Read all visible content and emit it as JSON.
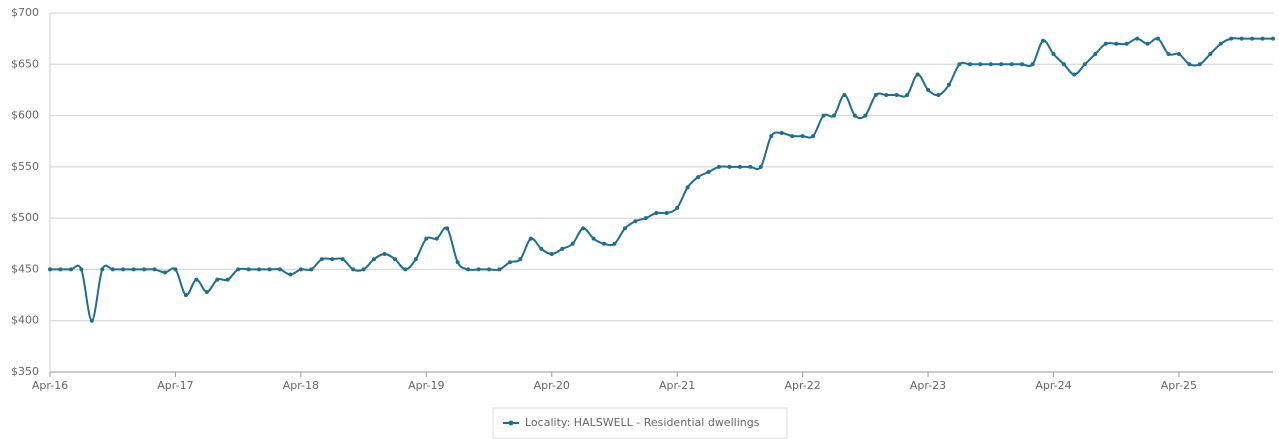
{
  "chart_data": {
    "type": "line",
    "categories": [
      "Apr-16",
      null,
      null,
      null,
      null,
      null,
      null,
      null,
      null,
      null,
      null,
      null,
      "Apr-17",
      null,
      null,
      null,
      null,
      null,
      null,
      null,
      null,
      null,
      null,
      null,
      "Apr-18",
      null,
      null,
      null,
      null,
      null,
      null,
      null,
      null,
      null,
      null,
      null,
      "Apr-19",
      null,
      null,
      null,
      null,
      null,
      null,
      null,
      null,
      null,
      null,
      null,
      "Apr-20",
      null,
      null,
      null,
      null,
      null,
      null,
      null,
      null,
      null,
      null,
      null,
      "Apr-21",
      null,
      null,
      null,
      null,
      null,
      null,
      null,
      null,
      null,
      null,
      null,
      "Apr-22",
      null,
      null,
      null,
      null,
      null,
      null,
      null,
      null,
      null,
      null,
      null,
      "Apr-23",
      null,
      null,
      null,
      null,
      null,
      null,
      null,
      null,
      null,
      null,
      null,
      "Apr-24",
      null,
      null,
      null,
      null,
      null,
      null,
      null,
      null,
      null,
      null,
      null,
      "Apr-25",
      null,
      null,
      null,
      null,
      null,
      null,
      null,
      null,
      null
    ],
    "series": [
      {
        "name": "Locality: HALSWELL - Residential dwellings",
        "color": "#1c6e93",
        "values": [
          450,
          450,
          450,
          450,
          400,
          450,
          450,
          450,
          450,
          450,
          450,
          447,
          450,
          425,
          440,
          428,
          440,
          440,
          450,
          450,
          450,
          450,
          450,
          445,
          450,
          450,
          460,
          460,
          460,
          450,
          450,
          460,
          465,
          460,
          450,
          460,
          480,
          480,
          490,
          457,
          450,
          450,
          450,
          450,
          457,
          460,
          480,
          470,
          465,
          470,
          475,
          490,
          480,
          475,
          475,
          490,
          497,
          500,
          505,
          505,
          510,
          530,
          540,
          545,
          550,
          550,
          550,
          550,
          550,
          580,
          583,
          580,
          580,
          580,
          600,
          600,
          620,
          600,
          600,
          620,
          620,
          620,
          620,
          640,
          625,
          620,
          630,
          650,
          650,
          650,
          650,
          650,
          650,
          650,
          650,
          673,
          660,
          650,
          640,
          650,
          660,
          670,
          670,
          670,
          675,
          670,
          675,
          660,
          660,
          650,
          650,
          660,
          670,
          675,
          675,
          675,
          675,
          675
        ]
      }
    ],
    "ylim": [
      350,
      700
    ],
    "yticks": [
      {
        "value": 350,
        "label": "$350"
      },
      {
        "value": 400,
        "label": "$400"
      },
      {
        "value": 450,
        "label": "$450"
      },
      {
        "value": 500,
        "label": "$500"
      },
      {
        "value": 550,
        "label": "$550"
      },
      {
        "value": 600,
        "label": "$600"
      },
      {
        "value": 650,
        "label": "$650"
      },
      {
        "value": 700,
        "label": "$700"
      }
    ],
    "grid": true,
    "legend": "bottom"
  }
}
